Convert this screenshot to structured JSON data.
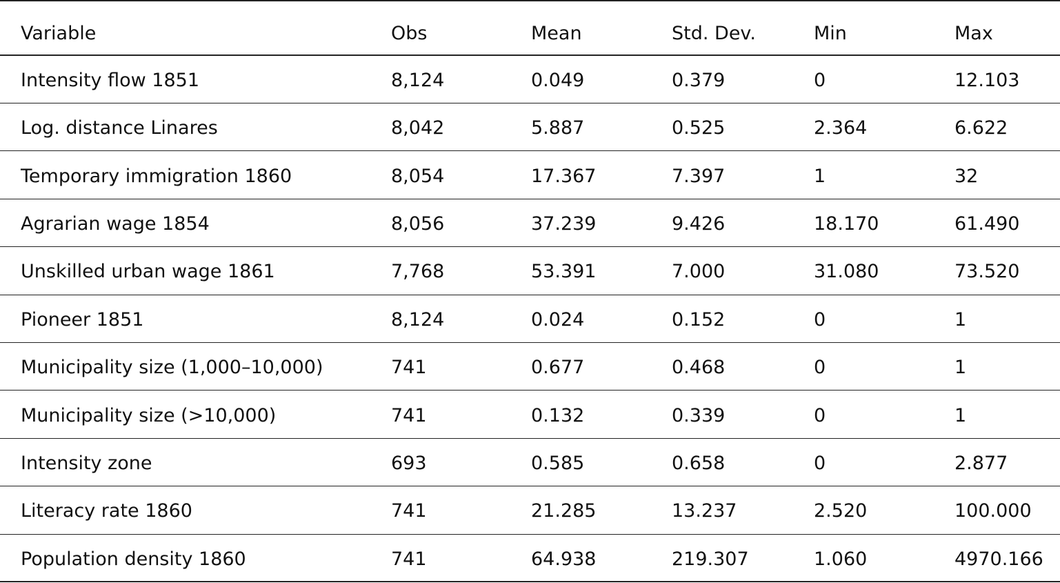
{
  "table": {
    "header": [
      "Variable",
      "Obs",
      "Mean",
      "Std. Dev.",
      "Min",
      "Max"
    ],
    "rows": [
      [
        "Intensity flow 1851",
        "8,124",
        "0.049",
        "0.379",
        "0",
        "12.103"
      ],
      [
        "Log. distance Linares",
        "8,042",
        "5.887",
        "0.525",
        "2.364",
        "6.622"
      ],
      [
        "Temporary immigration 1860",
        "8,054",
        "17.367",
        "7.397",
        "1",
        "32"
      ],
      [
        "Agrarian wage 1854",
        "8,056",
        "37.239",
        "9.426",
        "18.170",
        "61.490"
      ],
      [
        "Unskilled urban wage 1861",
        "7,768",
        "53.391",
        "7.000",
        "31.080",
        "73.520"
      ],
      [
        "Pioneer 1851",
        "8,124",
        "0.024",
        "0.152",
        "0",
        "1"
      ],
      [
        "Municipality size (1,000–10,000)",
        "741",
        "0.677",
        "0.468",
        "0",
        "1"
      ],
      [
        "Municipality size (>10,000)",
        "741",
        "0.132",
        "0.339",
        "0",
        "1"
      ],
      [
        "Intensity zone",
        "693",
        "0.585",
        "0.658",
        "0",
        "2.877"
      ],
      [
        "Literacy rate 1860",
        "741",
        "21.285",
        "13.237",
        "2.520",
        "100.000"
      ],
      [
        "Population density 1860",
        "741",
        "64.938",
        "219.307",
        "1.060",
        "4970.166"
      ]
    ]
  }
}
